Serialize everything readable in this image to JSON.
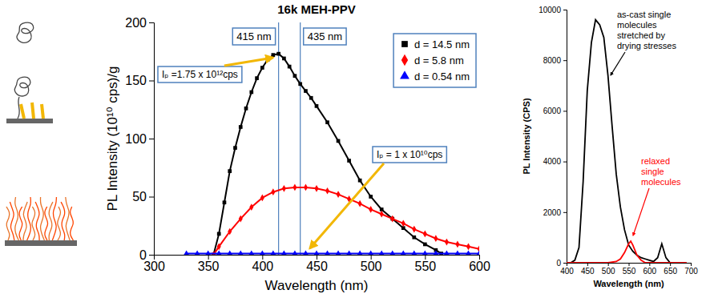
{
  "chart_data": [
    {
      "type": "line",
      "title": "16k MEH-PPV",
      "x_label": "Wavelength (nm)",
      "y_label": "PL Intensity (10¹⁰ cps)/g",
      "xlim": [
        300,
        600
      ],
      "xticks": [
        300,
        350,
        400,
        450,
        500,
        550,
        600
      ],
      "ylim": [
        0,
        200
      ],
      "yticks": [
        0,
        50,
        100,
        150,
        200
      ],
      "legend": "top-right",
      "series": [
        {
          "name": "d = 14.5 nm",
          "color": "#000000",
          "marker": "square",
          "x": [
            355,
            360,
            365,
            370,
            375,
            380,
            385,
            390,
            395,
            400,
            405,
            410,
            415,
            420,
            425,
            430,
            435,
            440,
            445,
            450,
            460,
            470,
            480,
            490,
            500,
            510,
            520,
            530,
            540,
            550,
            560,
            565
          ],
          "values": [
            0,
            18,
            45,
            72,
            92,
            110,
            126,
            140,
            152,
            161,
            168,
            172,
            173,
            169,
            162,
            154,
            147,
            141,
            135,
            128,
            114,
            98,
            81,
            64,
            50,
            39,
            31,
            23,
            15,
            9,
            4,
            1
          ]
        },
        {
          "name": "d = 5.8 nm",
          "color": "#ff0000",
          "marker": "diamond",
          "x": [
            355,
            360,
            370,
            380,
            390,
            400,
            410,
            420,
            430,
            440,
            450,
            460,
            470,
            480,
            490,
            500,
            510,
            520,
            530,
            540,
            550,
            560,
            570,
            580,
            590,
            600
          ],
          "values": [
            0,
            7,
            20,
            31,
            41,
            49,
            54,
            57,
            58,
            58,
            57,
            55,
            52,
            48,
            44,
            39,
            35,
            31,
            27,
            22,
            18,
            14,
            11,
            9,
            7,
            5
          ]
        },
        {
          "name": "d = 0.54 nm",
          "color": "#0000ff",
          "marker": "triangle",
          "x": [
            330,
            340,
            350,
            360,
            370,
            380,
            390,
            400,
            410,
            420,
            430,
            440,
            450,
            460,
            470,
            480,
            490,
            500,
            510,
            520,
            530,
            540,
            550,
            560,
            570,
            580,
            590,
            600
          ],
          "values": [
            1,
            1,
            1,
            1,
            1,
            1,
            1,
            1,
            1,
            1,
            1,
            1,
            1,
            1,
            1,
            1,
            1,
            1,
            1,
            1,
            1,
            1,
            1,
            1,
            1,
            1,
            1,
            1
          ]
        }
      ],
      "reference_lines": [
        {
          "x": 415,
          "label": "415 nm"
        },
        {
          "x": 435,
          "label": "435 nm"
        }
      ],
      "annotations": [
        {
          "text": "Iₚ =1.75 x 10¹²cps"
        },
        {
          "text": "Iₚ = 1 x 10¹⁰cps"
        }
      ]
    },
    {
      "type": "line",
      "x_label": "Wavelength (nm)",
      "y_label": "PL Intensity (CPS)",
      "xlim": [
        400,
        700
      ],
      "xticks": [
        400,
        450,
        500,
        550,
        600,
        650,
        700
      ],
      "ylim": [
        0,
        10000
      ],
      "yticks": [
        0,
        2000,
        4000,
        6000,
        8000,
        10000
      ],
      "series": [
        {
          "color": "#000000",
          "x": [
            410,
            420,
            430,
            440,
            450,
            460,
            470,
            480,
            490,
            500,
            510,
            520,
            530,
            540,
            550,
            560,
            570,
            580,
            590,
            600,
            610,
            620,
            630,
            640,
            650,
            660
          ],
          "values": [
            0,
            100,
            600,
            3200,
            6800,
            8700,
            9600,
            9400,
            8900,
            7400,
            5400,
            3500,
            2200,
            1300,
            700,
            450,
            300,
            200,
            150,
            100,
            50,
            200,
            750,
            200,
            0,
            0
          ]
        },
        {
          "color": "#ff0000",
          "x": [
            400,
            420,
            440,
            460,
            480,
            500,
            520,
            530,
            540,
            550,
            555,
            560,
            570,
            580,
            590,
            610,
            630,
            650,
            670,
            690
          ],
          "values": [
            0,
            0,
            0,
            0,
            0,
            0,
            50,
            150,
            400,
            750,
            850,
            700,
            300,
            100,
            0,
            0,
            0,
            0,
            0,
            0
          ]
        }
      ],
      "annotations": [
        {
          "text": [
            "as-cast single",
            "molecules",
            "stretched by",
            "drying stresses"
          ],
          "color": "#000000"
        },
        {
          "text": [
            "relaxed",
            "single",
            "molecules"
          ],
          "color": "#ff0000"
        }
      ]
    }
  ]
}
